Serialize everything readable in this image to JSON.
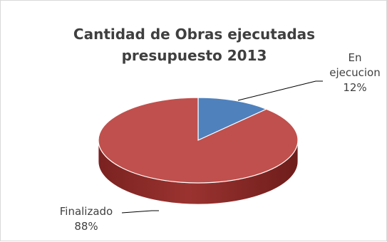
{
  "chart_data": {
    "type": "pie",
    "title_lines": [
      "Cantidad de Obras ejecutadas",
      "presupuesto 2013"
    ],
    "slices": [
      {
        "name_lines": [
          "En",
          "ejecucion"
        ],
        "value": 12,
        "value_label": "12%",
        "color": "#4f81bd",
        "side_color": "#2f5b8f"
      },
      {
        "name_lines": [
          "Finalizado"
        ],
        "value": 88,
        "value_label": "88%",
        "color": "#c0504d",
        "side_color": "#8b2a27"
      }
    ],
    "legend": "none",
    "data_labels": "outside-with-leader-lines"
  }
}
